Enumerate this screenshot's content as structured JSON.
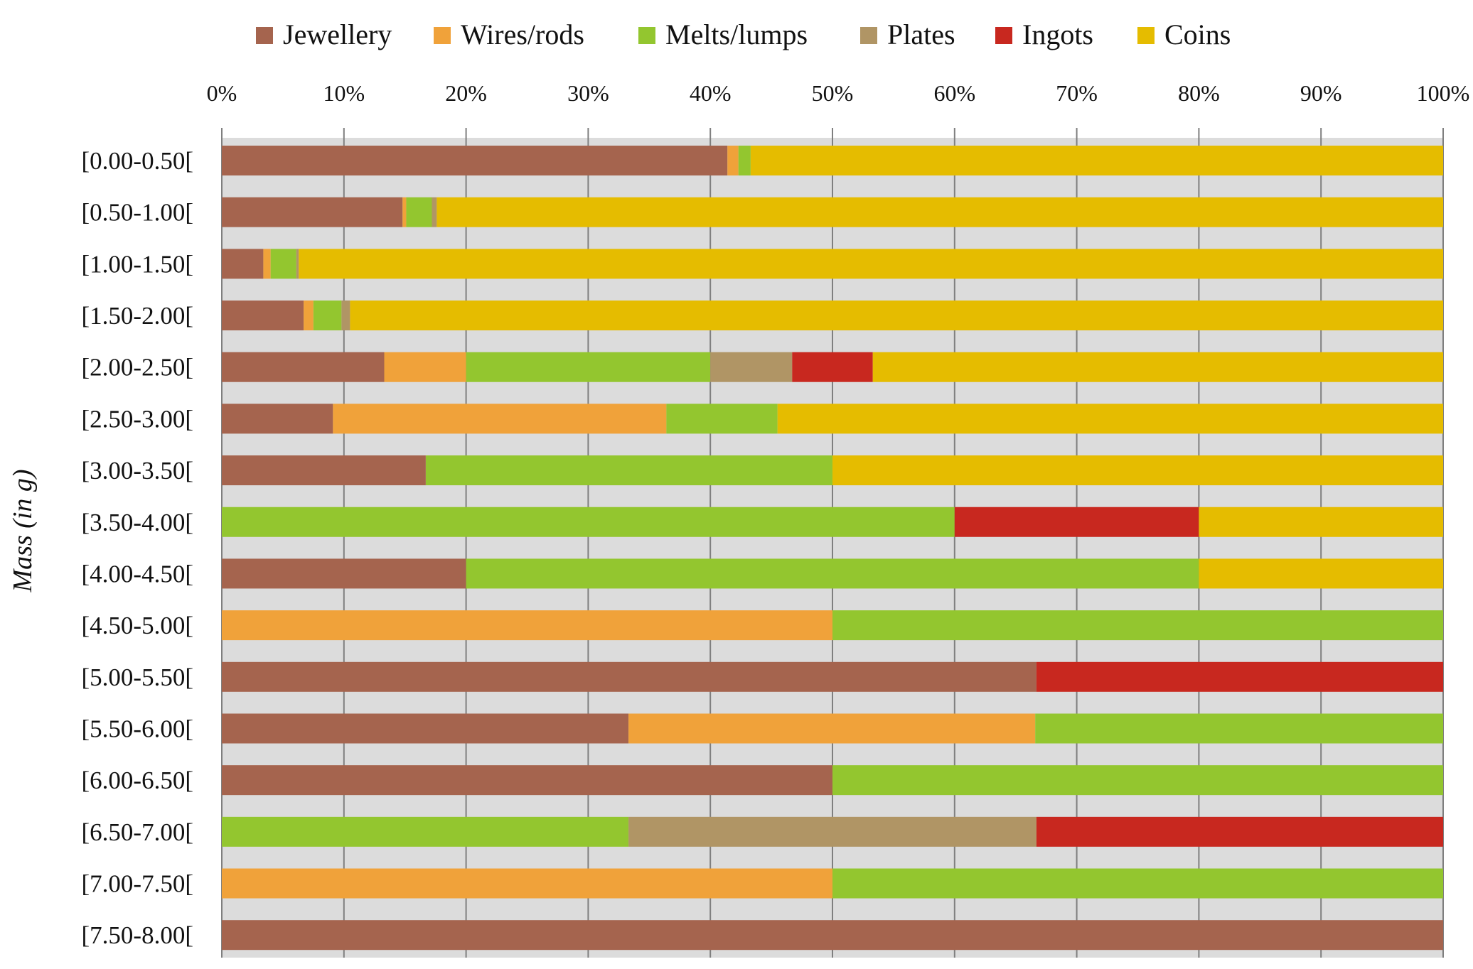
{
  "chart_data": {
    "type": "bar",
    "orientation": "horizontal",
    "stacked": "percent",
    "title": "",
    "xlabel": "",
    "ylabel": "Mass (in g)",
    "xlim": [
      0,
      100
    ],
    "x_ticks": [
      "0%",
      "10%",
      "20%",
      "30%",
      "40%",
      "50%",
      "60%",
      "70%",
      "80%",
      "90%",
      "100%"
    ],
    "grid": "vertical",
    "legend_position": "top",
    "categories": [
      "[0.00-0.50[",
      "[0.50-1.00[",
      "[1.00-1.50[",
      "[1.50-2.00[",
      "[2.00-2.50[",
      "[2.50-3.00[",
      "[3.00-3.50[",
      "[3.50-4.00[",
      "[4.00-4.50[",
      "[4.50-5.00[",
      "[5.00-5.50[",
      "[5.50-6.00[",
      "[6.00-6.50[",
      "[6.50-7.00[",
      "[7.00-7.50[",
      "[7.50-8.00["
    ],
    "series": [
      {
        "name": "Jewellery",
        "color": "#A5644E",
        "values": [
          41.4,
          14.8,
          3.4,
          6.7,
          13.3,
          9.1,
          16.7,
          0,
          20,
          0,
          66.7,
          33.3,
          50,
          0,
          0,
          100
        ]
      },
      {
        "name": "Wires/rods",
        "color": "#F0A23A",
        "values": [
          0.9,
          0.3,
          0.6,
          0.8,
          6.7,
          27.3,
          0,
          0,
          0,
          50,
          0,
          33.3,
          0,
          0,
          50,
          0
        ]
      },
      {
        "name": "Melts/lumps",
        "color": "#93C62F",
        "values": [
          1.0,
          2.1,
          2.1,
          2.3,
          20,
          9.1,
          33.3,
          60,
          60,
          50,
          0,
          33.4,
          50,
          33.3,
          50,
          0
        ]
      },
      {
        "name": "Plates",
        "color": "#B09565",
        "values": [
          0,
          0.4,
          0.2,
          0.7,
          6.7,
          0,
          0,
          0,
          0,
          0,
          0,
          0,
          0,
          33.4,
          0,
          0
        ]
      },
      {
        "name": "Ingots",
        "color": "#C8281F",
        "values": [
          0,
          0,
          0,
          0,
          6.6,
          0,
          0,
          20,
          0,
          0,
          33.3,
          0,
          0,
          33.3,
          0,
          0
        ]
      },
      {
        "name": "Coins",
        "color": "#E5BC00",
        "values": [
          56.7,
          82.4,
          93.7,
          89.5,
          46.7,
          54.5,
          50,
          20,
          20,
          0,
          0,
          0,
          0,
          0,
          0,
          0
        ]
      }
    ],
    "colors": {
      "plot_background": "#DCDCDC",
      "gridline": "#7F7F7F"
    }
  }
}
